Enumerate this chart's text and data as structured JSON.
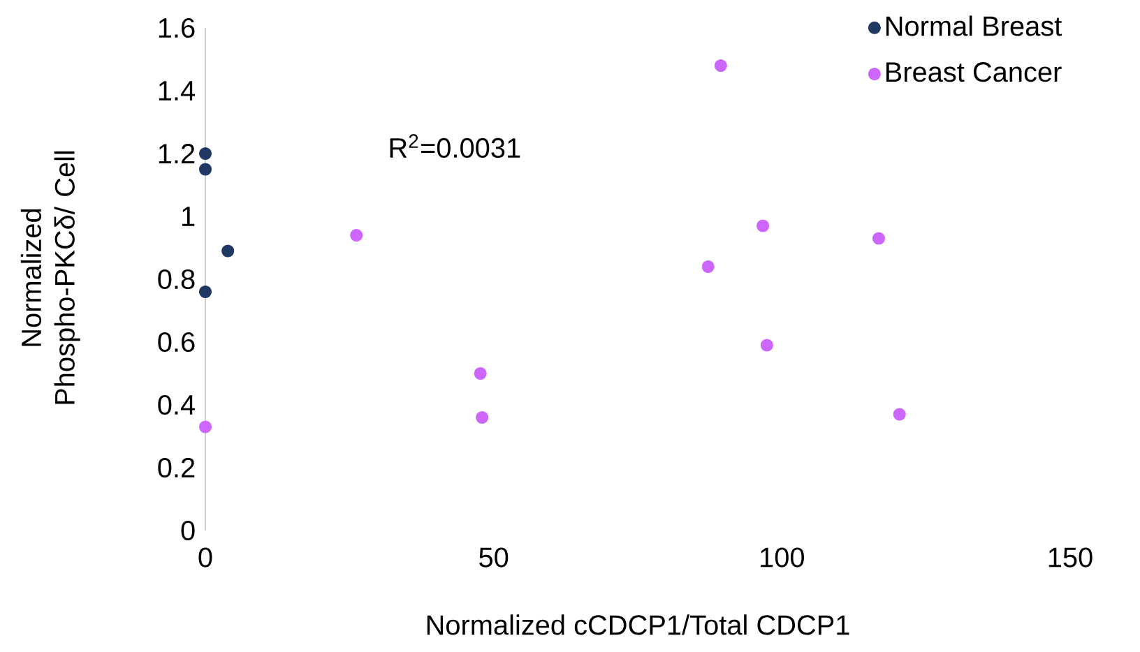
{
  "chart_data": {
    "type": "scatter",
    "xlabel": "Normalized cCDCP1/Total CDCP1",
    "ylabel": "Normalized Phospho-PKCδ/ Cell",
    "xlim": [
      0,
      150
    ],
    "ylim": [
      0,
      1.6
    ],
    "xticks": [
      0,
      50,
      100,
      150
    ],
    "yticks": [
      0,
      0.2,
      0.4,
      0.6,
      0.8,
      1,
      1.2,
      1.4,
      1.6
    ],
    "legend": "top right",
    "annotations": [
      "R$^{2}$=0.0031"
    ],
    "series": [
      {
        "name": "Normal Breast",
        "color": "#203864",
        "x": [
          0,
          0,
          3.9,
          0
        ],
        "values": [
          1.2,
          1.15,
          0.89,
          0.76
        ]
      },
      {
        "name": "Breast Cancer",
        "color": "#cc66ff",
        "x": [
          0,
          26.2,
          47.7,
          48,
          89.4,
          87.2,
          96.7,
          97.4,
          116.8,
          120.4
        ],
        "values": [
          0.33,
          0.94,
          0.5,
          0.36,
          1.48,
          0.84,
          0.97,
          0.59,
          0.93,
          0.37
        ]
      }
    ]
  }
}
